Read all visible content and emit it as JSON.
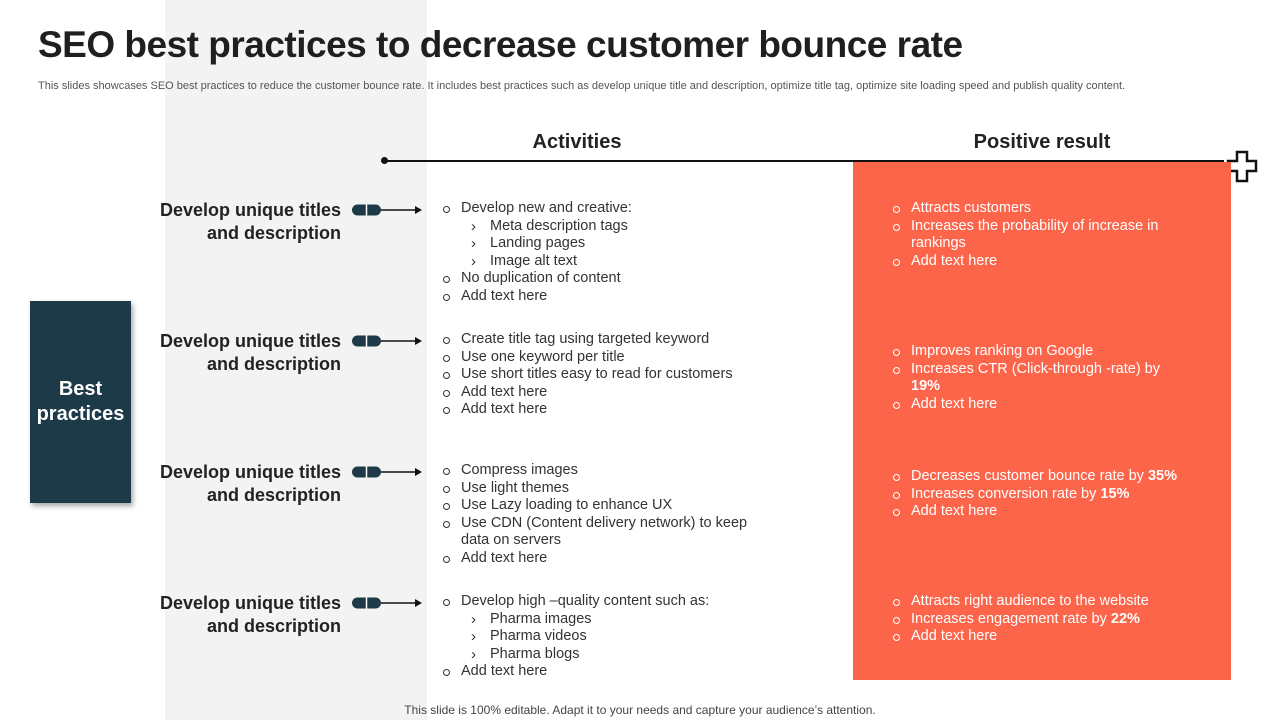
{
  "title": "SEO best practices to decrease customer bounce rate",
  "subtitle": "This slides showcases SEO best practices to reduce the customer bounce rate. It includes best practices such as develop unique title and description, optimize title tag, optimize site loading speed and publish quality content.",
  "headers": {
    "activities": "Activities",
    "results": "Positive result"
  },
  "best_practices_label": "Best\npractices",
  "colors": {
    "dark": "#1c3a48",
    "accent": "#fd654b",
    "band": "#f3f3f3"
  },
  "icons": {
    "corner": "cross-outline-icon",
    "connector": "pill-arrow-icon"
  },
  "rows": [
    {
      "label": "Develop unique titles and description",
      "activities": [
        {
          "text": "Develop new and creative:",
          "level": 1
        },
        {
          "text": "Meta description tags",
          "level": 2
        },
        {
          "text": "Landing pages",
          "level": 2
        },
        {
          "text": "Image alt text",
          "level": 2
        },
        {
          "text": "No duplication of content",
          "level": 1
        },
        {
          "text": "Add text here",
          "level": 1
        }
      ],
      "results": [
        {
          "text": "Attracts customers"
        },
        {
          "text": "Increases the probability of increase in rankings"
        },
        {
          "text": "Add text here"
        }
      ]
    },
    {
      "label": "Develop unique titles and description",
      "activities": [
        {
          "text": "Create title tag using targeted keyword",
          "level": 1
        },
        {
          "text": "Use one keyword per title",
          "level": 1
        },
        {
          "text": "Use short titles easy to read for customers",
          "level": 1
        },
        {
          "text": "Add text here",
          "level": 1
        },
        {
          "text": "Add text here",
          "level": 1
        }
      ],
      "results": [
        {
          "text": "Improves ranking on Google"
        },
        {
          "text": "Increases CTR (Click-through -rate) by ",
          "bold": "19%"
        },
        {
          "text": "Add text here"
        }
      ]
    },
    {
      "label": "Develop unique titles and description",
      "activities": [
        {
          "text": "Compress images",
          "level": 1
        },
        {
          "text": "Use light themes",
          "level": 1
        },
        {
          "text": "Use Lazy loading to enhance UX",
          "level": 1
        },
        {
          "text": "Use CDN (Content delivery network) to keep data on servers",
          "level": 1
        },
        {
          "text": "Add text here",
          "level": 1
        }
      ],
      "results": [
        {
          "text": "Decreases customer bounce rate by ",
          "bold": "35%"
        },
        {
          "text": "Increases conversion rate by ",
          "bold": "15%"
        },
        {
          "text": "Add text here"
        }
      ]
    },
    {
      "label": "Develop unique titles and description",
      "activities": [
        {
          "text": "Develop high –quality content such as:",
          "level": 1
        },
        {
          "text": "Pharma images",
          "level": 2
        },
        {
          "text": "Pharma videos",
          "level": 2
        },
        {
          "text": "Pharma blogs",
          "level": 2
        },
        {
          "text": "Add text here",
          "level": 1
        }
      ],
      "results": [
        {
          "text": "Attracts right audience to the website"
        },
        {
          "text": "Increases engagement rate by ",
          "bold": "22%"
        },
        {
          "text": "Add text here"
        }
      ]
    }
  ],
  "footer": "This slide is 100% editable. Adapt it to your needs and capture your audience’s attention."
}
